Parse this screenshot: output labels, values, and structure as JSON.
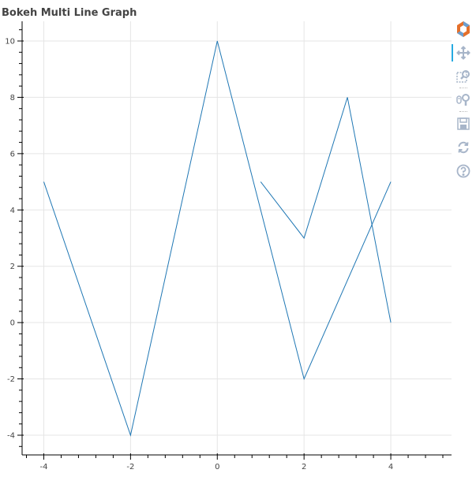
{
  "colors": {
    "line": "#1f77b4",
    "grid": "#e5e5e5",
    "text": "#444444",
    "tool_icon": "#a7b5c9",
    "active": "#26aae1"
  },
  "toolbar": {
    "tools": [
      {
        "name": "bokeh-logo-icon",
        "interactable": true
      },
      {
        "name": "pan-tool-icon",
        "interactable": true,
        "active": true
      },
      {
        "name": "box-zoom-tool-icon",
        "interactable": true
      },
      {
        "name": "wheel-zoom-tool-icon",
        "interactable": true
      },
      {
        "name": "save-tool-icon",
        "interactable": true
      },
      {
        "name": "reset-tool-icon",
        "interactable": true
      },
      {
        "name": "help-tool-icon",
        "interactable": true
      }
    ]
  },
  "chart_data": {
    "type": "line",
    "title": "Bokeh Multi Line Graph",
    "xlabel": "",
    "ylabel": "",
    "xlim": [
      -4.5,
      5.4
    ],
    "ylim": [
      -4.7,
      10.7
    ],
    "xticks": [
      -4,
      -2,
      0,
      2,
      4
    ],
    "yticks": [
      -4,
      -2,
      0,
      2,
      4,
      6,
      8,
      10
    ],
    "grid": true,
    "series": [
      {
        "x": [
          -4,
          -2,
          0,
          2,
          4
        ],
        "y": [
          5,
          -4,
          10,
          -2,
          5
        ]
      },
      {
        "x": [
          1,
          2,
          3,
          4
        ],
        "y": [
          5,
          3,
          8,
          0
        ]
      }
    ]
  }
}
